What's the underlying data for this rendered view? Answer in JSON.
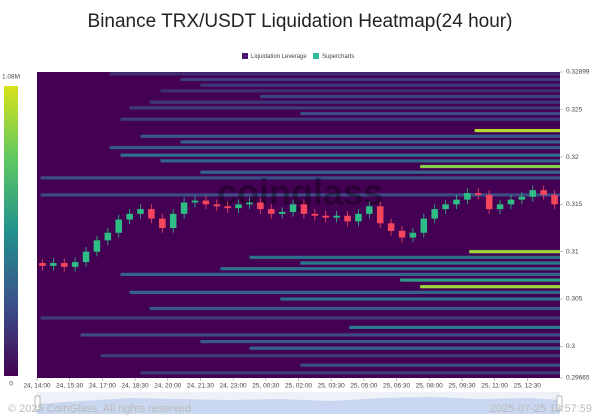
{
  "chart_data": {
    "type": "heatmap",
    "title": "Binance TRX/USDT Liquidation Heatmap(24 hour)",
    "watermark": "coinglass",
    "copyright": "© 2025 CoinGlass, All rights reserved",
    "timestamp": "2025-07-25 13:57:59",
    "xlim": [
      0,
      1440
    ],
    "xticks": [
      {
        "value": 0,
        "label": "24, 14:00"
      },
      {
        "value": 90,
        "label": "24, 15:30"
      },
      {
        "value": 180,
        "label": "24, 17:00"
      },
      {
        "value": 270,
        "label": "24, 18:30"
      },
      {
        "value": 360,
        "label": "24, 20:00"
      },
      {
        "value": 450,
        "label": "24, 21:30"
      },
      {
        "value": 540,
        "label": "24, 23:00"
      },
      {
        "value": 630,
        "label": "25, 00:30"
      },
      {
        "value": 720,
        "label": "25, 02:00"
      },
      {
        "value": 810,
        "label": "25, 03:30"
      },
      {
        "value": 900,
        "label": "25, 05:00"
      },
      {
        "value": 990,
        "label": "25, 06:30"
      },
      {
        "value": 1080,
        "label": "25, 08:00"
      },
      {
        "value": 1170,
        "label": "25, 09:30"
      },
      {
        "value": 1260,
        "label": "25, 11:00"
      },
      {
        "value": 1350,
        "label": "25, 12:30"
      }
    ],
    "ylim": [
      0.29665,
      0.32899
    ],
    "yticks": [
      0.29665,
      0.3,
      0.305,
      0.31,
      0.315,
      0.32,
      0.325,
      0.32899
    ],
    "colorbar_lim": [
      0,
      1080000
    ],
    "colorbar_ticks": [
      {
        "value": 1080000,
        "label": "1.08M"
      },
      0
    ],
    "series": [
      {
        "name": "Liquidation Leverage",
        "color": "#4b1470",
        "bands": [
          {
            "price": 0.3288,
            "start": 200,
            "value": 150000
          },
          {
            "price": 0.3282,
            "start": 395,
            "value": 200000
          },
          {
            "price": 0.3276,
            "start": 450,
            "value": 180000
          },
          {
            "price": 0.327,
            "start": 340,
            "value": 150000
          },
          {
            "price": 0.3264,
            "start": 615,
            "value": 220000
          },
          {
            "price": 0.3258,
            "start": 310,
            "value": 180000
          },
          {
            "price": 0.3252,
            "start": 255,
            "value": 200000
          },
          {
            "price": 0.3246,
            "start": 725,
            "value": 250000
          },
          {
            "price": 0.324,
            "start": 230,
            "value": 200000
          },
          {
            "price": 0.3228,
            "start": 1205,
            "value": 1000000
          },
          {
            "price": 0.3222,
            "start": 285,
            "value": 300000
          },
          {
            "price": 0.3216,
            "start": 395,
            "value": 350000
          },
          {
            "price": 0.321,
            "start": 200,
            "value": 300000
          },
          {
            "price": 0.3202,
            "start": 230,
            "value": 400000
          },
          {
            "price": 0.3196,
            "start": 340,
            "value": 350000
          },
          {
            "price": 0.319,
            "start": 1055,
            "value": 900000
          },
          {
            "price": 0.3184,
            "start": 450,
            "value": 350000
          },
          {
            "price": 0.3178,
            "start": 10,
            "value": 250000
          },
          {
            "price": 0.316,
            "start": 10,
            "value": 250000
          },
          {
            "price": 0.31,
            "start": 1190,
            "value": 950000
          },
          {
            "price": 0.3094,
            "start": 585,
            "value": 400000
          },
          {
            "price": 0.3088,
            "start": 725,
            "value": 450000
          },
          {
            "price": 0.3082,
            "start": 505,
            "value": 400000
          },
          {
            "price": 0.3076,
            "start": 230,
            "value": 350000
          },
          {
            "price": 0.307,
            "start": 1000,
            "value": 600000
          },
          {
            "price": 0.3063,
            "start": 1055,
            "value": 950000
          },
          {
            "price": 0.3057,
            "start": 255,
            "value": 350000
          },
          {
            "price": 0.305,
            "start": 670,
            "value": 400000
          },
          {
            "price": 0.304,
            "start": 310,
            "value": 300000
          },
          {
            "price": 0.303,
            "start": 10,
            "value": 200000
          },
          {
            "price": 0.302,
            "start": 860,
            "value": 450000
          },
          {
            "price": 0.3012,
            "start": 120,
            "value": 250000
          },
          {
            "price": 0.3005,
            "start": 450,
            "value": 300000
          },
          {
            "price": 0.2998,
            "start": 585,
            "value": 350000
          },
          {
            "price": 0.299,
            "start": 175,
            "value": 200000
          },
          {
            "price": 0.298,
            "start": 725,
            "value": 250000
          },
          {
            "price": 0.2972,
            "start": 285,
            "value": 200000
          }
        ]
      },
      {
        "name": "Supercharts",
        "color": "#2bbf9f",
        "up_color": "#2ebd85",
        "down_color": "#f6465d",
        "x": [
          15,
          45,
          75,
          105,
          135,
          165,
          195,
          225,
          255,
          285,
          315,
          345,
          375,
          405,
          435,
          465,
          495,
          525,
          555,
          585,
          615,
          645,
          675,
          705,
          735,
          765,
          795,
          825,
          855,
          885,
          915,
          945,
          975,
          1005,
          1035,
          1065,
          1095,
          1125,
          1155,
          1185,
          1215,
          1245,
          1275,
          1305,
          1335,
          1365,
          1395,
          1425
        ],
        "candles": [
          [
            0.3088,
            0.3092,
            0.308,
            0.3085
          ],
          [
            0.3085,
            0.3093,
            0.308,
            0.3088
          ],
          [
            0.3088,
            0.3093,
            0.3079,
            0.3084
          ],
          [
            0.3084,
            0.3094,
            0.3079,
            0.3089
          ],
          [
            0.3089,
            0.3105,
            0.3084,
            0.31
          ],
          [
            0.31,
            0.3117,
            0.3095,
            0.3112
          ],
          [
            0.3112,
            0.3125,
            0.3107,
            0.312
          ],
          [
            0.312,
            0.3139,
            0.3115,
            0.3134
          ],
          [
            0.3134,
            0.3145,
            0.3129,
            0.314
          ],
          [
            0.314,
            0.315,
            0.3135,
            0.3145
          ],
          [
            0.3145,
            0.315,
            0.313,
            0.3135
          ],
          [
            0.3135,
            0.314,
            0.312,
            0.3125
          ],
          [
            0.3125,
            0.3145,
            0.312,
            0.314
          ],
          [
            0.314,
            0.3157,
            0.3135,
            0.3152
          ],
          [
            0.3152,
            0.3159,
            0.3147,
            0.3154
          ],
          [
            0.3154,
            0.3159,
            0.3145,
            0.315
          ],
          [
            0.315,
            0.3155,
            0.3143,
            0.3148
          ],
          [
            0.3148,
            0.3153,
            0.3141,
            0.3146
          ],
          [
            0.3146,
            0.3155,
            0.3141,
            0.315
          ],
          [
            0.315,
            0.3157,
            0.3145,
            0.3152
          ],
          [
            0.3152,
            0.3157,
            0.314,
            0.3145
          ],
          [
            0.3145,
            0.315,
            0.3135,
            0.314
          ],
          [
            0.314,
            0.3147,
            0.3135,
            0.3142
          ],
          [
            0.3142,
            0.3155,
            0.3137,
            0.315
          ],
          [
            0.315,
            0.3155,
            0.3135,
            0.314
          ],
          [
            0.314,
            0.3145,
            0.3133,
            0.3138
          ],
          [
            0.3138,
            0.3143,
            0.3131,
            0.3136
          ],
          [
            0.3136,
            0.3143,
            0.3131,
            0.3138
          ],
          [
            0.3138,
            0.3143,
            0.3127,
            0.3132
          ],
          [
            0.3132,
            0.3145,
            0.3127,
            0.314
          ],
          [
            0.314,
            0.3153,
            0.3135,
            0.3148
          ],
          [
            0.3148,
            0.3153,
            0.3125,
            0.313
          ],
          [
            0.313,
            0.3135,
            0.3117,
            0.3122
          ],
          [
            0.3122,
            0.3127,
            0.311,
            0.3115
          ],
          [
            0.3115,
            0.3125,
            0.311,
            0.312
          ],
          [
            0.312,
            0.314,
            0.3115,
            0.3135
          ],
          [
            0.3135,
            0.315,
            0.313,
            0.3145
          ],
          [
            0.3145,
            0.3155,
            0.314,
            0.315
          ],
          [
            0.315,
            0.316,
            0.3145,
            0.3155
          ],
          [
            0.3155,
            0.3167,
            0.315,
            0.3162
          ],
          [
            0.3162,
            0.3167,
            0.3155,
            0.316
          ],
          [
            0.316,
            0.3165,
            0.314,
            0.3145
          ],
          [
            0.3145,
            0.3155,
            0.314,
            0.315
          ],
          [
            0.315,
            0.316,
            0.3145,
            0.3155
          ],
          [
            0.3155,
            0.3163,
            0.315,
            0.3158
          ],
          [
            0.3158,
            0.317,
            0.3153,
            0.3165
          ],
          [
            0.3165,
            0.317,
            0.3155,
            0.316
          ],
          [
            0.316,
            0.3165,
            0.3145,
            0.315
          ]
        ]
      }
    ]
  }
}
